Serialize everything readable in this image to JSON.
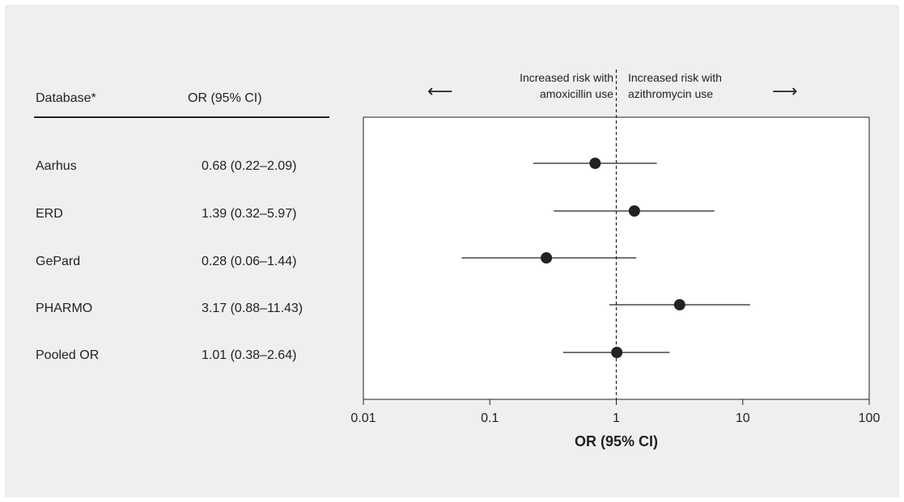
{
  "header": {
    "database_col": "Database*",
    "or_col": "OR (95% CI)"
  },
  "annotations": {
    "left_line1": "Increased risk with",
    "left_line2": "amoxicillin use",
    "right_line1": "Increased risk with",
    "right_line2": "azithromycin use",
    "left_arrow": "⟵",
    "right_arrow": "⟶"
  },
  "colors": {
    "background": "#efefef",
    "marker": "#222222",
    "plot_area": "#ffffff"
  },
  "chart_data": {
    "type": "forest",
    "xscale": "log",
    "xlim": [
      0.01,
      100
    ],
    "xticks": [
      "0.01",
      "0.1",
      "1",
      "10",
      "100"
    ],
    "xtick_values": [
      0.01,
      0.1,
      1,
      10,
      100
    ],
    "xlabel": "OR (95% CI)",
    "reference_line": 1,
    "rows": [
      {
        "label": "Aarhus",
        "or_text": "0.68 (0.22–2.09)",
        "or": 0.68,
        "lo": 0.22,
        "hi": 2.09
      },
      {
        "label": "ERD",
        "or_text": "1.39 (0.32–5.97)",
        "or": 1.39,
        "lo": 0.32,
        "hi": 5.97
      },
      {
        "label": "GePard",
        "or_text": "0.28 (0.06–1.44)",
        "or": 0.28,
        "lo": 0.06,
        "hi": 1.44
      },
      {
        "label": "PHARMO",
        "or_text": "3.17 (0.88–11.43)",
        "or": 3.17,
        "lo": 0.88,
        "hi": 11.43
      },
      {
        "label": "Pooled OR",
        "or_text": "1.01 (0.38–2.64)",
        "or": 1.01,
        "lo": 0.38,
        "hi": 2.64
      }
    ]
  }
}
